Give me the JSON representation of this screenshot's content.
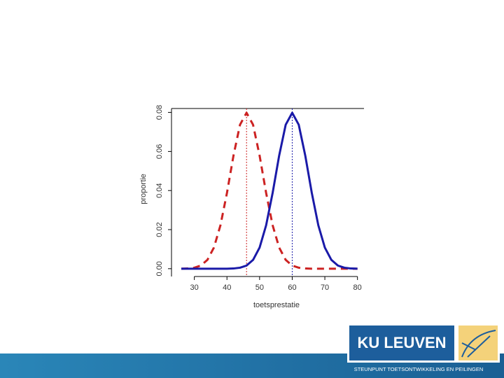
{
  "chart_data": {
    "type": "line",
    "x_label": "toetsprestatie",
    "y_label": "proportie",
    "x": [
      26,
      28,
      30,
      32,
      34,
      36,
      38,
      40,
      42,
      44,
      46,
      48,
      50,
      52,
      54,
      56,
      58,
      60,
      62,
      64,
      66,
      68,
      70,
      72,
      74,
      76,
      78,
      80
    ],
    "series": [
      {
        "color": "#cc2222",
        "dash": true,
        "values": [
          0,
          0.0001,
          0.0005,
          0.0016,
          0.0045,
          0.0108,
          0.0222,
          0.0388,
          0.0579,
          0.0737,
          0.0798,
          0.0737,
          0.0579,
          0.0388,
          0.0222,
          0.0108,
          0.0045,
          0.0016,
          0.0005,
          0.0001,
          0,
          0,
          0,
          0,
          0,
          0,
          0,
          0
        ]
      },
      {
        "color": "#1a1aa8",
        "dash": false,
        "values": [
          0,
          0,
          0,
          0,
          0,
          0,
          0,
          0,
          0.0001,
          0.0005,
          0.0016,
          0.0045,
          0.0108,
          0.0222,
          0.0388,
          0.0579,
          0.0737,
          0.0798,
          0.0737,
          0.0579,
          0.0388,
          0.0222,
          0.0108,
          0.0045,
          0.0016,
          0.0005,
          0.0001,
          0
        ]
      }
    ],
    "vlines": [
      {
        "x": 46,
        "color": "#cc2222"
      },
      {
        "x": 60,
        "color": "#1a1aa8"
      }
    ],
    "xlim": [
      23,
      82
    ],
    "xticks": [
      30,
      40,
      50,
      60,
      70,
      80
    ],
    "ylim": [
      -0.004,
      0.082
    ],
    "yticks": [
      {
        "value": 0,
        "label": "0.00"
      },
      {
        "value": 0.02,
        "label": "0.02"
      },
      {
        "value": 0.04,
        "label": "0.04"
      },
      {
        "value": 0.06,
        "label": "0.06"
      },
      {
        "value": 0.08,
        "label": "0.08"
      }
    ],
    "grid": false
  },
  "footer": {
    "logo": "KU LEUVEN",
    "tagline": "STEUNPUNT TOETSONTWIKKELING EN PEILINGEN"
  }
}
